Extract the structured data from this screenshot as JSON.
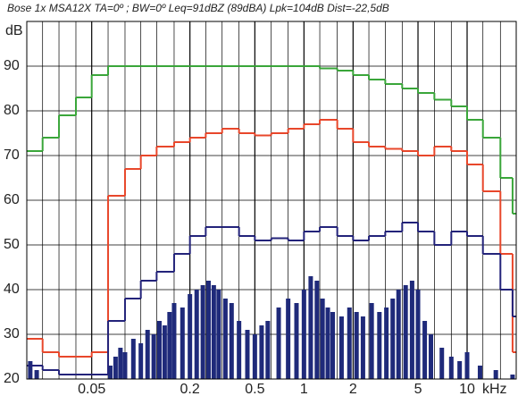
{
  "chart_data": {
    "type": "step",
    "title": "Bose 1x MSA12X TA=0º ; BW=0º Leq=91dBZ (89dBA) Lpk=104dB Dist=-22,5dB",
    "y_label": "dB",
    "x_label": "kHz",
    "log_x": true,
    "grid": true,
    "xlim": [
      0.02,
      20
    ],
    "ylim": [
      20,
      100
    ],
    "xticks": [
      0.05,
      0.2,
      0.5,
      1,
      2,
      5,
      10
    ],
    "xgrid_minor": [
      0.025,
      0.0315,
      0.04,
      0.063,
      0.08,
      0.1,
      0.125,
      0.16,
      0.25,
      0.315,
      0.4,
      0.63,
      0.8,
      1.25,
      1.6,
      2.5,
      3.15,
      4,
      6.3,
      8,
      12.5,
      16
    ],
    "yticks": [
      20,
      30,
      40,
      50,
      60,
      70,
      80,
      90
    ],
    "x": [
      0.02,
      0.025,
      0.0315,
      0.04,
      0.05,
      0.063,
      0.08,
      0.1,
      0.125,
      0.16,
      0.2,
      0.25,
      0.315,
      0.4,
      0.5,
      0.63,
      0.8,
      1,
      1.25,
      1.6,
      2,
      2.5,
      3.15,
      4,
      5,
      6.3,
      8,
      10,
      12.5,
      16,
      19
    ],
    "series": [
      {
        "color": "#3aa63a",
        "values": [
          71,
          74,
          79,
          83,
          88,
          90,
          90,
          90,
          90,
          90,
          90,
          90,
          90,
          90,
          90,
          90,
          90,
          90,
          89.5,
          89,
          88,
          87,
          86,
          85,
          84,
          82.5,
          81,
          78,
          74,
          65,
          57
        ]
      },
      {
        "color": "#e8472b",
        "values": [
          29,
          26,
          25,
          25,
          26,
          61,
          67,
          70,
          72,
          73,
          74,
          75,
          76,
          75,
          74.5,
          75,
          76,
          77,
          78,
          76,
          73,
          72,
          71.5,
          71,
          70,
          72,
          71,
          68,
          62,
          48,
          26
        ]
      },
      {
        "color": "#23237a",
        "values": [
          23,
          22,
          21,
          21,
          21,
          33,
          38,
          42,
          44,
          48,
          52,
          54,
          54,
          52,
          51,
          51.5,
          51,
          53,
          54,
          52,
          51,
          52,
          53,
          55,
          53,
          50,
          53,
          52,
          48,
          40,
          34
        ]
      }
    ],
    "spectrum": {
      "color": "#1f2a7a",
      "x": [
        0.021,
        0.023,
        0.065,
        0.07,
        0.075,
        0.08,
        0.09,
        0.1,
        0.11,
        0.12,
        0.13,
        0.14,
        0.15,
        0.16,
        0.18,
        0.2,
        0.22,
        0.24,
        0.26,
        0.28,
        0.3,
        0.33,
        0.36,
        0.4,
        0.45,
        0.5,
        0.55,
        0.6,
        0.7,
        0.8,
        0.9,
        1.0,
        1.1,
        1.2,
        1.3,
        1.4,
        1.5,
        1.7,
        1.9,
        2.1,
        2.3,
        2.6,
        2.9,
        3.2,
        3.5,
        3.8,
        4.2,
        4.6,
        5.0,
        5.5,
        6,
        7,
        8,
        9,
        10,
        12,
        15,
        19
      ],
      "values": [
        24,
        22,
        23,
        25,
        27,
        26,
        29,
        28,
        31,
        30,
        33,
        32,
        35,
        37,
        36,
        39,
        40,
        41,
        42,
        41,
        40,
        38,
        37,
        33,
        31,
        30,
        32,
        33,
        36,
        38,
        37,
        40,
        43,
        42,
        38,
        36,
        35,
        34,
        36,
        35,
        34,
        37,
        35,
        36,
        38,
        40,
        41,
        42,
        40,
        33,
        30,
        27,
        25,
        24,
        26,
        23,
        22,
        21
      ]
    }
  }
}
